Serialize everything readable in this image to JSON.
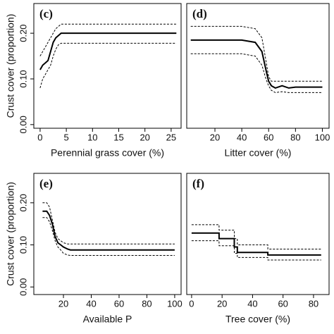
{
  "chart_data": [
    {
      "type": "line",
      "title": "(c)",
      "x_label": "Perennial grass cover (%)",
      "y_label": "Crust cover (proportion)",
      "x": [
        0,
        0.5,
        1,
        1.5,
        2,
        2.5,
        3,
        3.5,
        4,
        5,
        26
      ],
      "series": [
        {
          "color": "#000000",
          "style": "solid",
          "values": [
            0.12,
            0.13,
            0.135,
            0.14,
            0.16,
            0.18,
            0.19,
            0.195,
            0.2,
            0.2,
            0.2
          ]
        },
        {
          "color": "#000000",
          "style": "dashed",
          "values": [
            0.15,
            0.16,
            0.17,
            0.18,
            0.19,
            0.2,
            0.21,
            0.215,
            0.22,
            0.22,
            0.22
          ]
        },
        {
          "color": "#000000",
          "style": "dashed",
          "values": [
            0.08,
            0.1,
            0.11,
            0.12,
            0.13,
            0.15,
            0.165,
            0.175,
            0.178,
            0.178,
            0.178
          ]
        }
      ],
      "xlim": [
        -1.2,
        26.9
      ],
      "ylim": [
        -0.008,
        0.265
      ],
      "xticks": [
        0,
        5,
        10,
        15,
        20,
        25
      ],
      "yticks": [
        {
          "value": 0,
          "label": "0.00"
        },
        {
          "value": 0.1,
          "label": "0.10"
        },
        {
          "value": 0.2,
          "label": "0.20"
        }
      ]
    },
    {
      "type": "line",
      "title": "(d)",
      "x_label": "Litter cover (%)",
      "x": [
        2,
        40,
        50,
        55,
        58,
        60,
        62,
        65,
        70,
        75,
        80,
        100
      ],
      "series": [
        {
          "color": "#000000",
          "style": "solid",
          "values": [
            0.185,
            0.185,
            0.18,
            0.16,
            0.12,
            0.095,
            0.085,
            0.08,
            0.085,
            0.08,
            0.082,
            0.082
          ]
        },
        {
          "color": "#000000",
          "style": "dashed",
          "values": [
            0.215,
            0.215,
            0.21,
            0.19,
            0.14,
            0.105,
            0.095,
            0.095,
            0.095,
            0.095,
            0.095,
            0.095
          ]
        },
        {
          "color": "#000000",
          "style": "dashed",
          "values": [
            0.155,
            0.155,
            0.15,
            0.13,
            0.1,
            0.085,
            0.075,
            0.07,
            0.072,
            0.07,
            0.07,
            0.07
          ]
        }
      ],
      "xlim": [
        -1,
        105
      ],
      "ylim": [
        -0.008,
        0.265
      ],
      "xticks": [
        20,
        40,
        60,
        80,
        100
      ]
    },
    {
      "type": "line",
      "title": "(e)",
      "x_label": "Available P",
      "y_label": "Crust cover (proportion)",
      "x": [
        5,
        8,
        10,
        12,
        14,
        16,
        18,
        20,
        23,
        25,
        100
      ],
      "series": [
        {
          "color": "#000000",
          "style": "solid",
          "values": [
            0.18,
            0.18,
            0.17,
            0.15,
            0.12,
            0.105,
            0.1,
            0.095,
            0.09,
            0.088,
            0.088
          ]
        },
        {
          "color": "#000000",
          "style": "dashed",
          "values": [
            0.2,
            0.2,
            0.19,
            0.16,
            0.13,
            0.115,
            0.11,
            0.105,
            0.102,
            0.102,
            0.102
          ]
        },
        {
          "color": "#000000",
          "style": "dashed",
          "values": [
            0.165,
            0.165,
            0.155,
            0.135,
            0.11,
            0.095,
            0.088,
            0.08,
            0.076,
            0.075,
            0.075
          ]
        }
      ],
      "xlim": [
        -1.3,
        104.6
      ],
      "ylim": [
        -0.018,
        0.27
      ],
      "xticks": [
        20,
        40,
        60,
        80,
        100
      ],
      "yticks": [
        {
          "value": 0,
          "label": "0.00"
        },
        {
          "value": 0.1,
          "label": "0.10"
        },
        {
          "value": 0.2,
          "label": "0.20"
        }
      ]
    },
    {
      "type": "line",
      "title": "(f)",
      "x_label": "Tree cover (%)",
      "x": [
        0,
        18,
        18,
        28,
        28,
        30,
        30,
        50,
        50,
        85
      ],
      "series": [
        {
          "color": "#000000",
          "style": "solid",
          "values": [
            0.128,
            0.128,
            0.115,
            0.115,
            0.095,
            0.095,
            0.082,
            0.082,
            0.076,
            0.076
          ]
        },
        {
          "color": "#000000",
          "style": "dashed",
          "values": [
            0.148,
            0.148,
            0.135,
            0.135,
            0.115,
            0.115,
            0.1,
            0.1,
            0.09,
            0.09
          ]
        },
        {
          "color": "#000000",
          "style": "dashed",
          "values": [
            0.11,
            0.11,
            0.098,
            0.098,
            0.08,
            0.08,
            0.07,
            0.07,
            0.064,
            0.064
          ]
        }
      ],
      "xlim": [
        -3.2,
        90.2
      ],
      "ylim": [
        -0.018,
        0.27
      ],
      "xticks": [
        0,
        20,
        40,
        60,
        80
      ]
    }
  ]
}
